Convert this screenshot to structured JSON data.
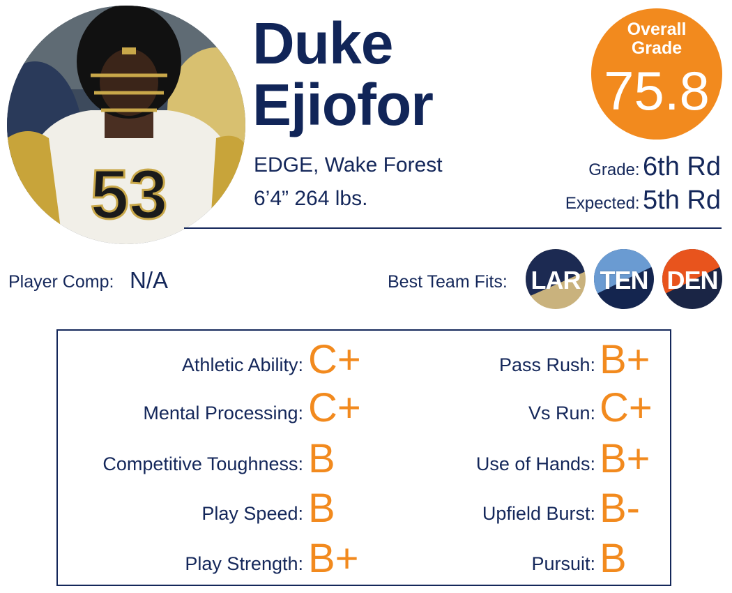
{
  "player": {
    "first_name": "Duke",
    "last_name": "Ejiofor",
    "position_school": "EDGE, Wake Forest",
    "measurables": "6’4” 264 lbs.",
    "jersey_number": "53"
  },
  "overall": {
    "label": "Overall Grade",
    "value": "75.8"
  },
  "rounds": {
    "grade_label": "Grade:",
    "grade_value": "6th Rd",
    "expected_label": "Expected:",
    "expected_value": "5th Rd"
  },
  "comp": {
    "label": "Player Comp:",
    "value": "N/A"
  },
  "team_fits": {
    "label": "Best Team Fits:",
    "teams": [
      "LAR",
      "TEN",
      "DEN"
    ]
  },
  "traits_left": [
    {
      "label": "Athletic Ability:",
      "grade": "C+"
    },
    {
      "label": "Mental Processing:",
      "grade": "C+"
    },
    {
      "label": "Competitive Toughness:",
      "grade": "B"
    },
    {
      "label": "Play Speed:",
      "grade": "B"
    },
    {
      "label": "Play Strength:",
      "grade": "B+"
    }
  ],
  "traits_right": [
    {
      "label": "Pass Rush:",
      "grade": "B+"
    },
    {
      "label": "Vs Run:",
      "grade": "C+"
    },
    {
      "label": "Use of Hands:",
      "grade": "B+"
    },
    {
      "label": "Upfield Burst:",
      "grade": "B-"
    },
    {
      "label": "Pursuit:",
      "grade": "B"
    }
  ],
  "colors": {
    "navy": "#14275a",
    "orange": "#f28a1e",
    "rams_navy": "#1c2a52",
    "rams_gold": "#c9b27d",
    "titans_blue": "#6a9bd2",
    "titans_navy": "#14254f",
    "broncos_orange": "#e8541d",
    "broncos_navy": "#1a2545"
  }
}
